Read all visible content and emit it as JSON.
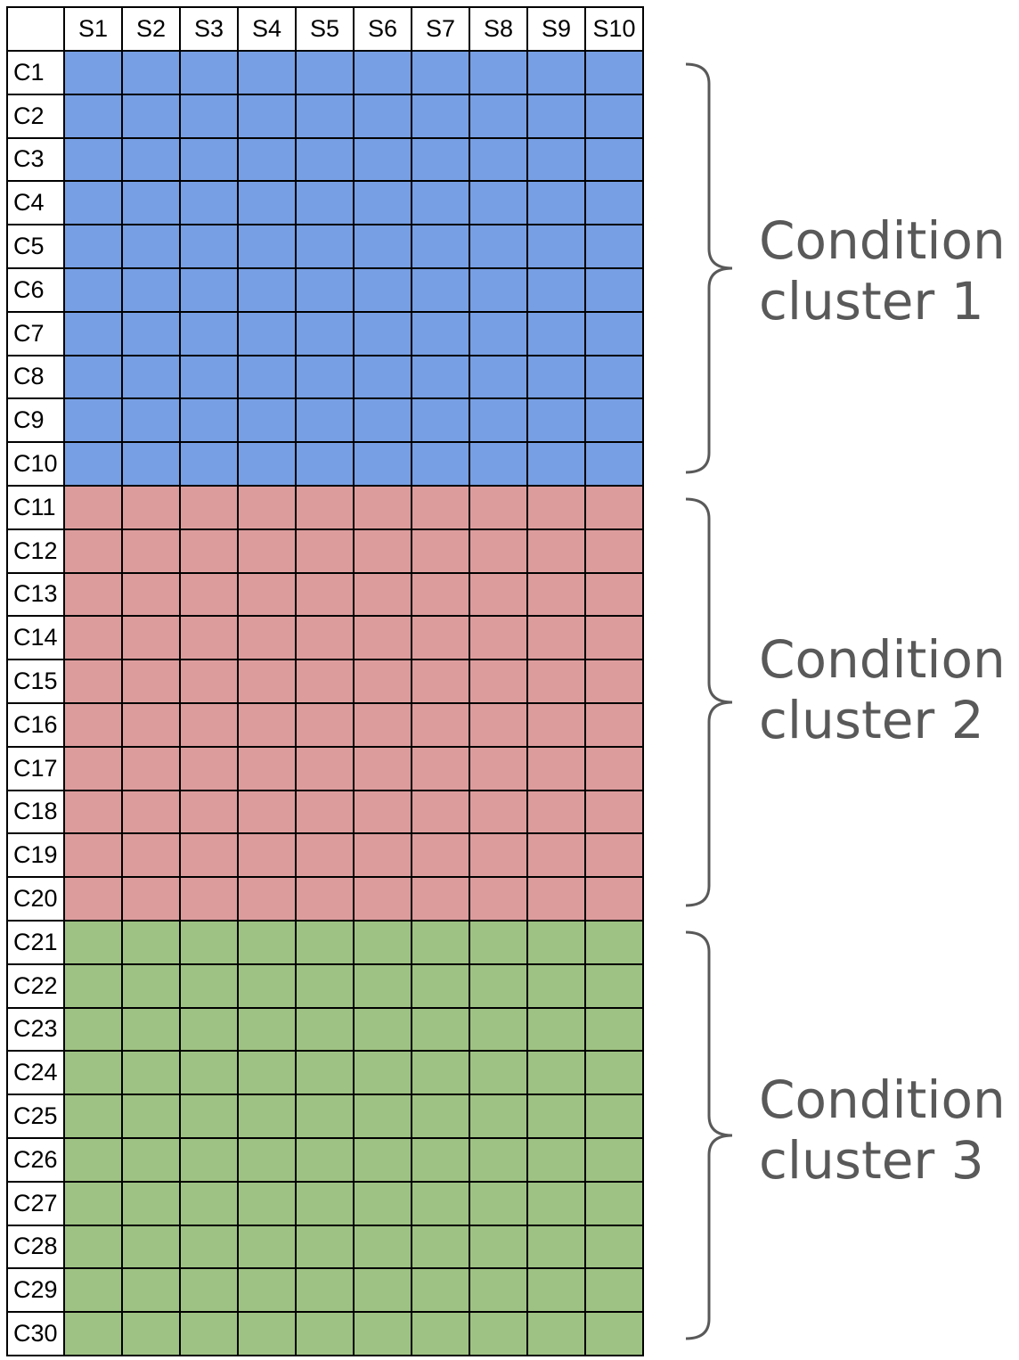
{
  "table": {
    "columns": [
      "S1",
      "S2",
      "S3",
      "S4",
      "S5",
      "S6",
      "S7",
      "S8",
      "S9",
      "S10"
    ],
    "rows": [
      "C1",
      "C2",
      "C3",
      "C4",
      "C5",
      "C6",
      "C7",
      "C8",
      "C9",
      "C10",
      "C11",
      "C12",
      "C13",
      "C14",
      "C15",
      "C16",
      "C17",
      "C18",
      "C19",
      "C20",
      "C21",
      "C22",
      "C23",
      "C24",
      "C25",
      "C26",
      "C27",
      "C28",
      "C29",
      "C30"
    ]
  },
  "clusters": [
    {
      "line1": "Condition",
      "line2": "cluster 1",
      "color": "#779fe3",
      "first_row": 1,
      "last_row": 10
    },
    {
      "line1": "Condition",
      "line2": "cluster 2",
      "color": "#dd9c9c",
      "first_row": 11,
      "last_row": 20
    },
    {
      "line1": "Condition",
      "line2": "cluster 3",
      "color": "#9ec283",
      "first_row": 21,
      "last_row": 30
    }
  ],
  "colors": {
    "grid_line": "#000000",
    "brace": "#595959",
    "label": "#595959"
  }
}
